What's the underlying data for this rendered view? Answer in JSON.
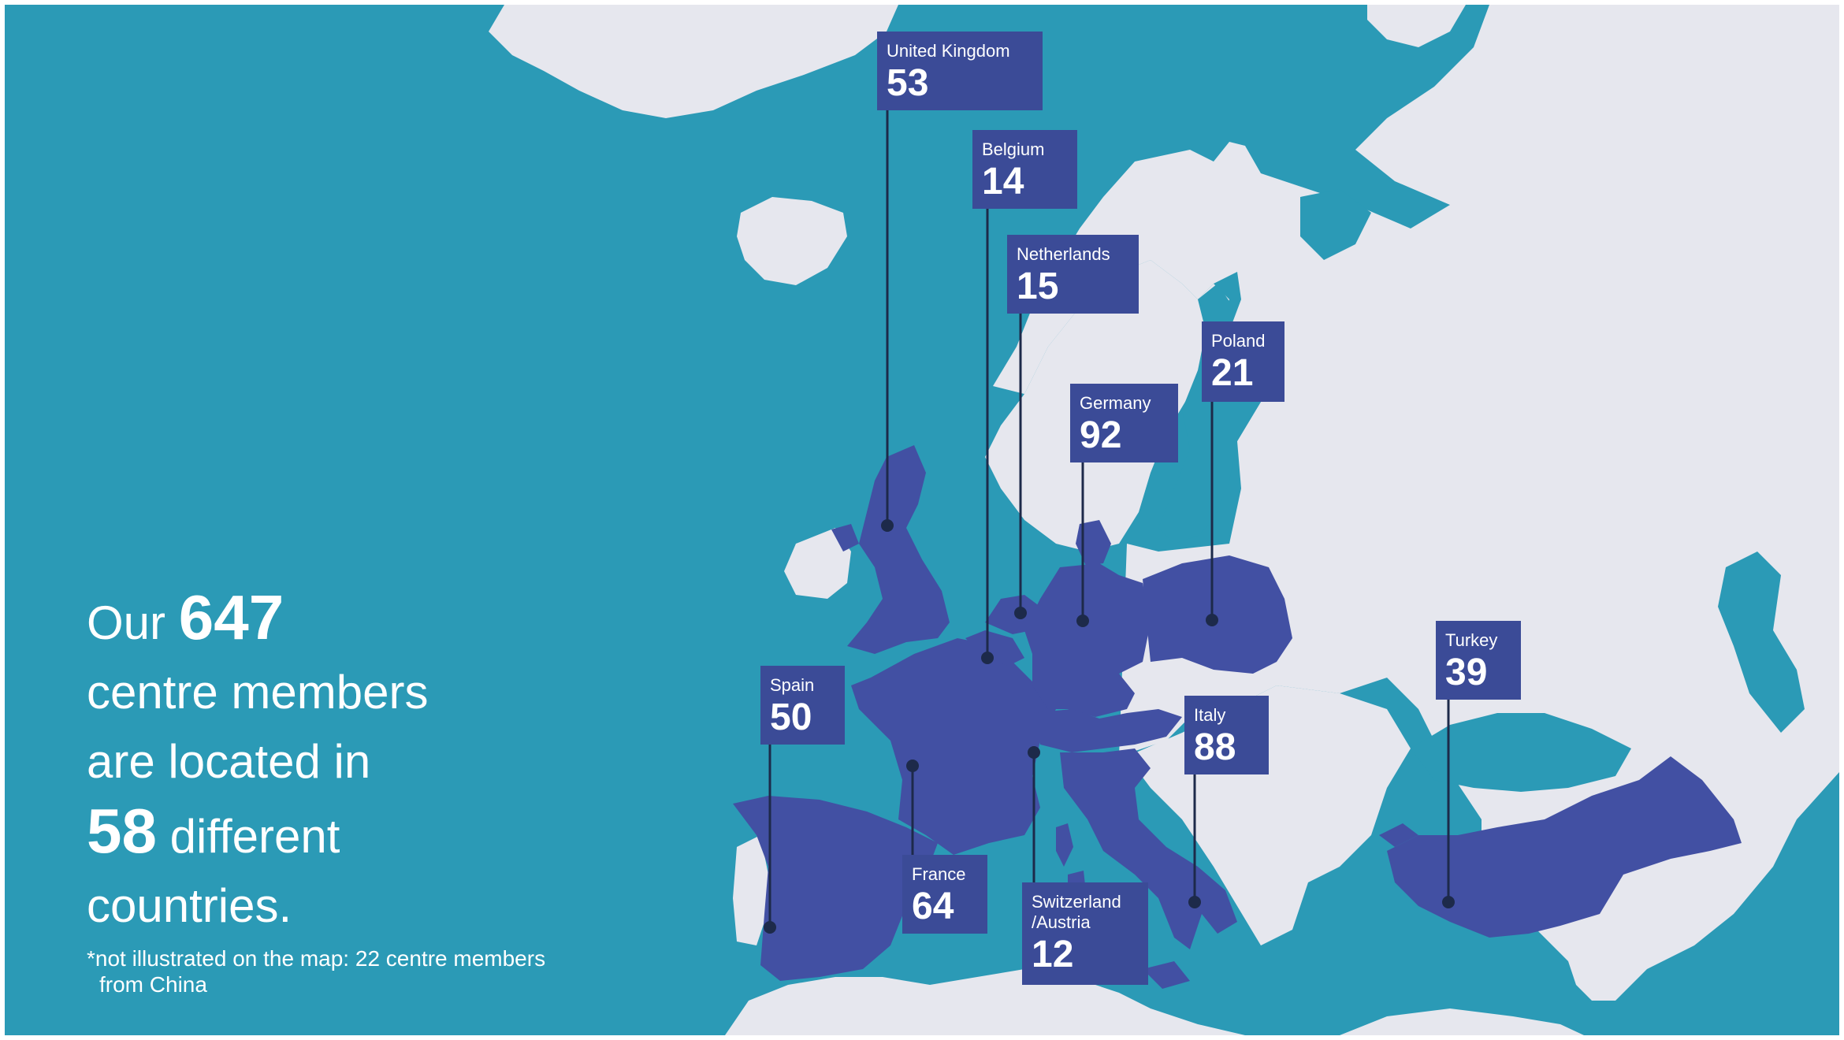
{
  "colors": {
    "sea": "#2b9ab6",
    "land": "#e6e7ee",
    "member_country": "#4250a3",
    "label_bg": "#3b4b97",
    "leader_line": "#1d2a4a",
    "text": "#ffffff"
  },
  "headline": {
    "line1_prefix": "Our",
    "total_members": "647",
    "line2": "centre members",
    "line3": "are located in",
    "total_countries": "58",
    "line4_suffix": "different",
    "line5": "countries."
  },
  "footnote": {
    "line1": "*not illustrated on the map: 22 centre members",
    "line2": "from China"
  },
  "countries": [
    {
      "name": "United Kingdom",
      "count": "53"
    },
    {
      "name": "Belgium",
      "count": "14"
    },
    {
      "name": "Netherlands",
      "count": "15"
    },
    {
      "name": "Poland",
      "count": "21"
    },
    {
      "name": "Germany",
      "count": "92"
    },
    {
      "name": "Spain",
      "count": "50"
    },
    {
      "name": "France",
      "count": "64"
    },
    {
      "name": "Switzerland\n/Austria",
      "count": "12"
    },
    {
      "name": "Italy",
      "count": "88"
    },
    {
      "name": "Turkey",
      "count": "39"
    }
  ]
}
